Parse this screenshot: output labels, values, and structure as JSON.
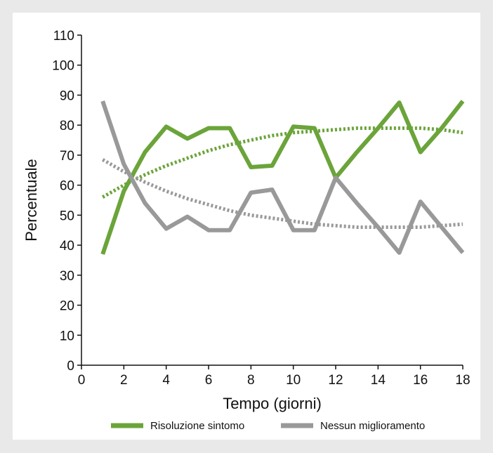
{
  "chart_data": {
    "type": "line",
    "title": "",
    "xlabel": "Tempo (giorni)",
    "ylabel": "Percentuale",
    "xlim": [
      0,
      18
    ],
    "ylim": [
      0,
      110
    ],
    "xticks": [
      0,
      2,
      4,
      6,
      8,
      10,
      12,
      14,
      16,
      18
    ],
    "yticks": [
      0,
      10,
      20,
      30,
      40,
      50,
      60,
      70,
      80,
      90,
      100,
      110
    ],
    "grid": false,
    "legend_position": "bottom",
    "series": [
      {
        "name": "Risoluzione sintomo",
        "color": "#6ba43a",
        "style": "solid",
        "x": [
          1,
          2,
          3,
          4,
          5,
          6,
          7,
          8,
          9,
          10,
          11,
          12,
          13,
          14,
          15,
          16,
          17,
          18
        ],
        "y": [
          37,
          58,
          71,
          79.5,
          75.5,
          79,
          79,
          66,
          66.5,
          79.5,
          79,
          62.5,
          71,
          79,
          87.5,
          71,
          79,
          88
        ]
      },
      {
        "name": "Nessun miglioramento",
        "color": "#999999",
        "style": "solid",
        "x": [
          1,
          2,
          3,
          4,
          5,
          6,
          7,
          8,
          9,
          10,
          11,
          12,
          13,
          14,
          15,
          16,
          17,
          18
        ],
        "y": [
          88,
          67,
          54,
          45.5,
          49.5,
          45,
          45,
          57.5,
          58.5,
          45,
          45,
          62.5,
          54,
          46,
          37.5,
          54.5,
          46,
          37.5
        ]
      },
      {
        "name": "",
        "color": "#6ba43a",
        "style": "dotted",
        "x": [
          1,
          2,
          3,
          4,
          5,
          6,
          7,
          8,
          9,
          10,
          11,
          12,
          13,
          14,
          15,
          16,
          17,
          18
        ],
        "y": [
          56,
          60,
          63.5,
          66.5,
          69,
          71.5,
          73.5,
          75,
          76.5,
          77.5,
          78,
          78.5,
          79,
          79,
          79,
          79,
          78.5,
          77.5
        ]
      },
      {
        "name": "",
        "color": "#999999",
        "style": "dotted",
        "x": [
          1,
          2,
          3,
          4,
          5,
          6,
          7,
          8,
          9,
          10,
          11,
          12,
          13,
          14,
          15,
          16,
          17,
          18
        ],
        "y": [
          68.5,
          64.5,
          61,
          58,
          55.5,
          53.5,
          51.5,
          50,
          49,
          48,
          47,
          46.5,
          46,
          46,
          46,
          46,
          46.5,
          47
        ]
      }
    ]
  }
}
